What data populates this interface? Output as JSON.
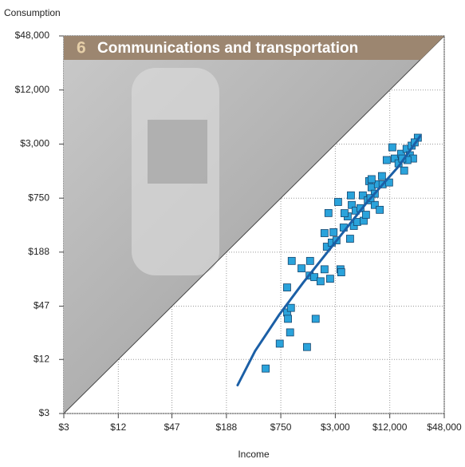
{
  "chart_data": {
    "type": "scatter",
    "y_label": "Consumption",
    "x_label": "Income",
    "banner_number": "6",
    "banner_title": "Communications and transportation",
    "log_x": true,
    "log_y": true,
    "grid": true,
    "xlim": [
      3,
      48000
    ],
    "ylim": [
      3,
      48000
    ],
    "xticks": [
      {
        "value": 3,
        "label": "$3"
      },
      {
        "value": 12,
        "label": "$12"
      },
      {
        "value": 47,
        "label": "$47"
      },
      {
        "value": 188,
        "label": "$188"
      },
      {
        "value": 750,
        "label": "$750"
      },
      {
        "value": 3000,
        "label": "$3,000"
      },
      {
        "value": 12000,
        "label": "$12,000"
      },
      {
        "value": 48000,
        "label": "$48,000"
      }
    ],
    "yticks": [
      {
        "value": 3,
        "label": "$3"
      },
      {
        "value": 12,
        "label": "$12"
      },
      {
        "value": 47,
        "label": "$47"
      },
      {
        "value": 188,
        "label": "$188"
      },
      {
        "value": 750,
        "label": "$750"
      },
      {
        "value": 3000,
        "label": "$3,000"
      },
      {
        "value": 12000,
        "label": "$12,000"
      },
      {
        "value": 48000,
        "label": "$48,000"
      }
    ],
    "color": "#2aa3db",
    "x": [
      510,
      730,
      950,
      880,
      900,
      970,
      1460,
      1820,
      880,
      990,
      1270,
      1580,
      1560,
      1760,
      2060,
      2420,
      2630,
      2280,
      2280,
      2740,
      2870,
      3090,
      3420,
      3490,
      2520,
      3220,
      3710,
      4110,
      4460,
      4560,
      5040,
      4810,
      5240,
      5690,
      6040,
      6180,
      6550,
      6870,
      7100,
      7550,
      8190,
      8190,
      8870,
      9300,
      10000,
      11100,
      11800,
      12800,
      13600,
      15000,
      16000,
      17300,
      18400,
      20000,
      20900,
      21700,
      18800,
      24500,
      22600,
      16500,
      9830,
      7550,
      3790,
      4370,
      7350
    ],
    "values": [
      9.5,
      18,
      24,
      40,
      34,
      45,
      16.5,
      34,
      76,
      150,
      124,
      150,
      103,
      99,
      89,
      216,
      95,
      121,
      306,
      240,
      313,
      254,
      121,
      112,
      512,
      680,
      353,
      470,
      805,
      630,
      545,
      368,
      408,
      580,
      805,
      420,
      490,
      710,
      1160,
      990,
      840,
      630,
      1070,
      556,
      1070,
      1990,
      1120,
      2760,
      2070,
      1830,
      2340,
      1520,
      2650,
      2250,
      2880,
      2070,
      1990,
      3530,
      3130,
      2070,
      1320,
      1220,
      510,
      265,
      750
    ],
    "fit": {
      "color": "#1b5fa6",
      "x": [
        250,
        390,
        717,
        1320,
        2970,
        6680,
        15000,
        26000
      ],
      "values": [
        6.2,
        14.9,
        37.6,
        85.6,
        239,
        669,
        1690,
        3680
      ]
    }
  }
}
